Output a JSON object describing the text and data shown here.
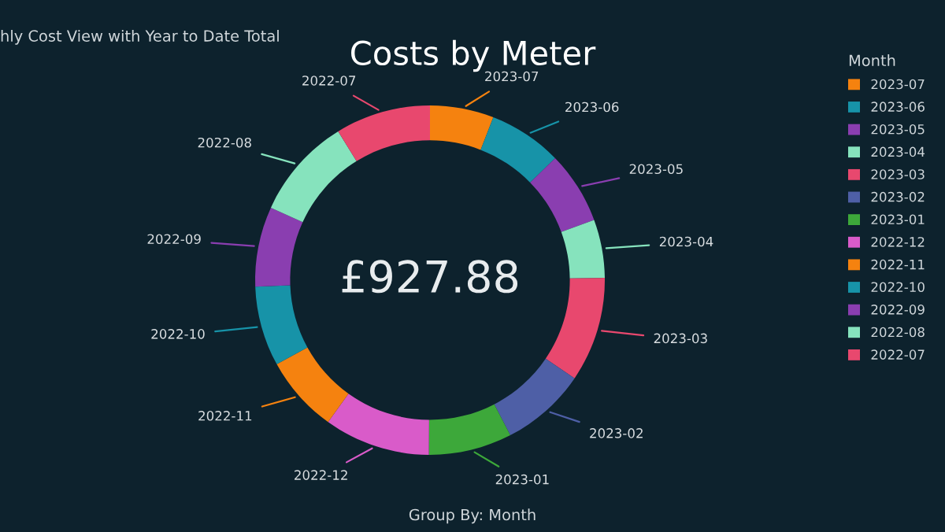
{
  "chart_data": {
    "type": "donut",
    "title": "Costs by Meter",
    "annotations": [
      "hly Cost View with Year to Date Total",
      "£927.88",
      "Group By: Month"
    ],
    "legend_title": "Month",
    "legend": "right",
    "categories": [
      "2023-07",
      "2023-06",
      "2023-05",
      "2023-04",
      "2023-03",
      "2023-02",
      "2023-01",
      "2022-12",
      "2022-11",
      "2022-10",
      "2022-09",
      "2022-08",
      "2022-07"
    ],
    "values": [
      5.9,
      6.8,
      6.7,
      5.4,
      9.7,
      7.9,
      7.7,
      9.8,
      7.1,
      7.4,
      7.4,
      9.4,
      8.8
    ],
    "colors": [
      "#f5820f",
      "#1793a8",
      "#8a3eb0",
      "#86e3bd",
      "#e8486e",
      "#4e5fa6",
      "#3da83a",
      "#d95bc9",
      "#f5820f",
      "#1793a8",
      "#8a3eb0",
      "#86e3bd",
      "#e8486e"
    ]
  }
}
